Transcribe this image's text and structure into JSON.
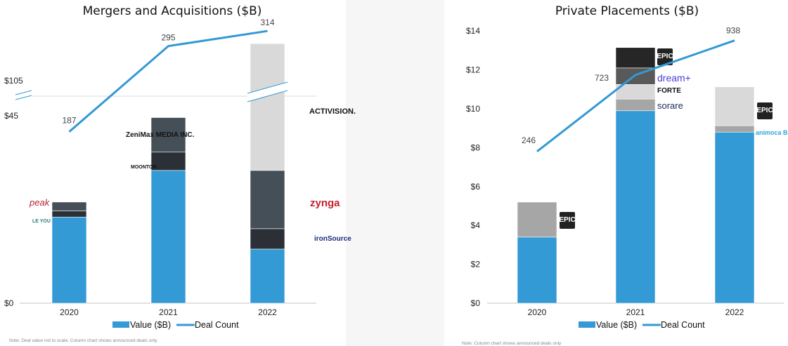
{
  "chart_data": [
    {
      "type": "bar+line",
      "title": "Mergers and Acquisitions ($B)",
      "categories": [
        "2020",
        "2021",
        "2022"
      ],
      "y_ticks": [
        "$0",
        "$45",
        "$105"
      ],
      "axis_break": "between $45 and $105",
      "stacked_segments": [
        [
          {
            "value": 20.7,
            "color": "#339ad6"
          },
          {
            "value": 1.5,
            "color": "#2b3037",
            "logo": "LE YOU"
          },
          {
            "value": 2.1,
            "color": "#454f58",
            "logo": "peak"
          }
        ],
        [
          {
            "value": 31.9,
            "color": "#339ad6"
          },
          {
            "value": 4.4,
            "color": "#2b3037",
            "logo": "MOONTON"
          },
          {
            "value": 8.3,
            "color": "#454f58",
            "logo": "ZeniMax MEDIA INC."
          }
        ],
        [
          {
            "value": 13.0,
            "color": "#339ad6"
          },
          {
            "value": 4.9,
            "color": "#2b3037",
            "logo": "ironSource"
          },
          {
            "value": 14.0,
            "color": "#454f58",
            "logo": "zynga"
          },
          {
            "value": 68.7,
            "color": "#d9d9d9",
            "logo": "ACTIVISION."
          }
        ]
      ],
      "deal_count": [
        187,
        295,
        314
      ],
      "legend": [
        "Value ($B)",
        "Deal Count"
      ],
      "legend_position": "bottom",
      "note": "Note: Deal value not to scale; Column chart shows announced deals only"
    },
    {
      "type": "bar+line",
      "title": "Private Placements ($B)",
      "categories": [
        "2020",
        "2021",
        "2022"
      ],
      "y_ticks": [
        "$0",
        "$2",
        "$4",
        "$6",
        "$8",
        "$10",
        "$12",
        "$14"
      ],
      "ylim": [
        0,
        14
      ],
      "stacked_segments": [
        [
          {
            "value": 3.4,
            "color": "#339ad6"
          },
          {
            "value": 1.8,
            "color": "#a6a6a6",
            "logo": "EPIC GAMES"
          }
        ],
        [
          {
            "value": 9.9,
            "color": "#339ad6"
          },
          {
            "value": 0.6,
            "color": "#a6a6a6",
            "logo": "sorare"
          },
          {
            "value": 0.75,
            "color": "#d9d9d9",
            "logo": "FORTE"
          },
          {
            "value": 0.85,
            "color": "#595959",
            "logo": "dream+"
          },
          {
            "value": 1.05,
            "color": "#262626",
            "logo": "EPIC GAMES"
          }
        ],
        [
          {
            "value": 8.8,
            "color": "#339ad6"
          },
          {
            "value": 0.33,
            "color": "#a6a6a6",
            "logo": "animoca BRANDS"
          },
          {
            "value": 2.0,
            "color": "#d9d9d9",
            "logo": "EPIC GAMES"
          }
        ]
      ],
      "deal_count": [
        246,
        723,
        938
      ],
      "legend": [
        "Value ($B)",
        "Deal Count"
      ],
      "legend_position": "bottom",
      "note": "Note: Column chart shows announced deals only"
    }
  ],
  "colors": {
    "value": "#339ad6",
    "line": "#3399d4"
  }
}
